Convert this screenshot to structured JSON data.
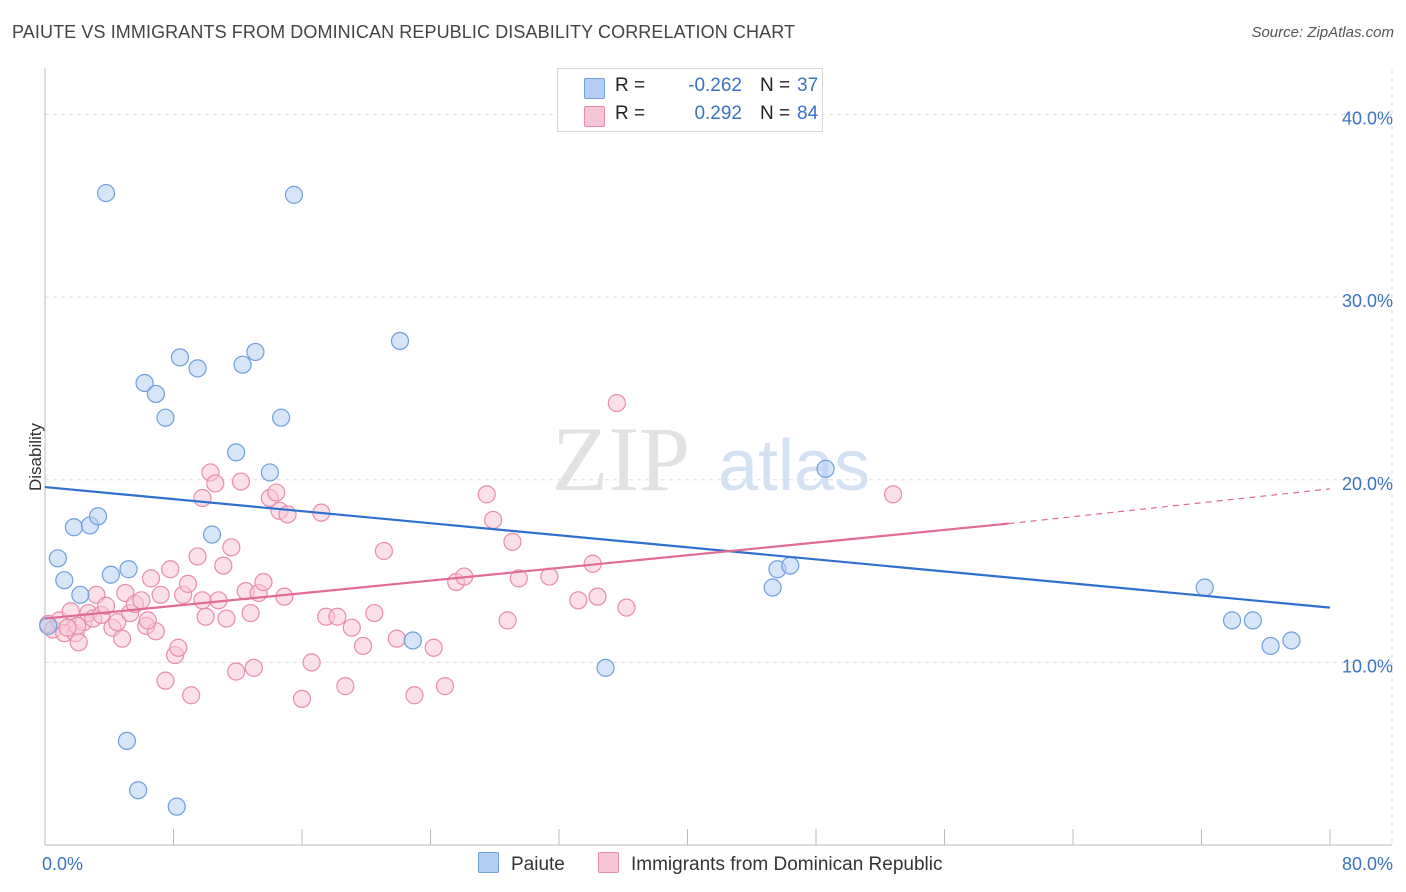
{
  "header": {
    "title": "PAIUTE VS IMMIGRANTS FROM DOMINICAN REPUBLIC DISABILITY CORRELATION CHART",
    "source": "Source: ZipAtlas.com"
  },
  "watermark": {
    "part1": "ZIP",
    "part2": "atlas"
  },
  "legend": {
    "rows": [
      {
        "r_key": "R =",
        "r_value": "-0.262",
        "n_key": "N =",
        "n_value": "37"
      },
      {
        "r_key": "R =",
        "r_value": "0.292",
        "n_key": "N =",
        "n_value": "84"
      }
    ]
  },
  "bottom_legend": {
    "series1": "Paiute",
    "series2": "Immigrants from Dominican Republic"
  },
  "colors": {
    "blue_fill": "#b5cff2",
    "blue_stroke": "#6f9fdc",
    "blue_line": "#2f6fcf",
    "pink_fill": "#f7c6d5",
    "pink_stroke": "#e98cab",
    "pink_line": "#e06b96",
    "tick_text": "#3b72c4",
    "grid": "#dddddd"
  },
  "chart_data": {
    "type": "scatter",
    "title": "PAIUTE VS IMMIGRANTS FROM DOMINICAN REPUBLIC DISABILITY CORRELATION CHART",
    "xlabel": "",
    "ylabel": "Disability",
    "xlim": [
      0,
      80
    ],
    "ylim": [
      0,
      42
    ],
    "x_tick_labels": [
      "0.0%",
      "80.0%"
    ],
    "y_ticks": [
      10,
      20,
      30,
      40
    ],
    "y_tick_labels": [
      "10.0%",
      "20.0%",
      "30.0%",
      "40.0%"
    ],
    "grid": true,
    "legend_position": "top-center",
    "series": [
      {
        "name": "Paiute",
        "r": -0.262,
        "n": 37,
        "trend": {
          "x": [
            0,
            80
          ],
          "y": [
            19.6,
            13.0
          ]
        },
        "points": [
          [
            0.2,
            12.0
          ],
          [
            0.8,
            15.7
          ],
          [
            1.2,
            14.5
          ],
          [
            1.8,
            17.4
          ],
          [
            2.2,
            13.7
          ],
          [
            2.8,
            17.5
          ],
          [
            3.3,
            18.0
          ],
          [
            3.8,
            35.7
          ],
          [
            4.1,
            14.8
          ],
          [
            5.1,
            5.7
          ],
          [
            5.2,
            15.1
          ],
          [
            5.8,
            3.0
          ],
          [
            6.2,
            25.3
          ],
          [
            6.9,
            24.7
          ],
          [
            7.5,
            23.4
          ],
          [
            8.2,
            2.1
          ],
          [
            8.4,
            26.7
          ],
          [
            9.5,
            26.1
          ],
          [
            10.4,
            17.0
          ],
          [
            11.9,
            21.5
          ],
          [
            12.3,
            26.3
          ],
          [
            13.1,
            27.0
          ],
          [
            14.0,
            20.4
          ],
          [
            14.7,
            23.4
          ],
          [
            15.5,
            35.6
          ],
          [
            22.1,
            27.6
          ],
          [
            22.9,
            11.2
          ],
          [
            34.9,
            9.7
          ],
          [
            45.3,
            14.1
          ],
          [
            45.6,
            15.1
          ],
          [
            46.4,
            15.3
          ],
          [
            48.6,
            20.6
          ],
          [
            72.2,
            14.1
          ],
          [
            73.9,
            12.3
          ],
          [
            75.2,
            12.3
          ],
          [
            76.3,
            10.9
          ],
          [
            77.6,
            11.2
          ]
        ]
      },
      {
        "name": "Immigrants from Dominican Republic",
        "r": 0.292,
        "n": 84,
        "trend": {
          "x": [
            0,
            60
          ],
          "y": [
            12.4,
            17.6
          ]
        },
        "trend_extension": {
          "x": [
            60,
            80
          ],
          "y": [
            17.6,
            19.5
          ]
        },
        "points": [
          [
            0.2,
            12.1
          ],
          [
            0.5,
            11.8
          ],
          [
            0.9,
            12.3
          ],
          [
            1.2,
            11.6
          ],
          [
            1.6,
            12.8
          ],
          [
            1.9,
            11.6
          ],
          [
            2.1,
            11.1
          ],
          [
            2.4,
            12.2
          ],
          [
            2.7,
            12.7
          ],
          [
            3.0,
            12.4
          ],
          [
            3.2,
            13.7
          ],
          [
            3.5,
            12.6
          ],
          [
            3.8,
            13.1
          ],
          [
            4.2,
            11.9
          ],
          [
            4.5,
            12.2
          ],
          [
            4.8,
            11.3
          ],
          [
            5.0,
            13.8
          ],
          [
            5.3,
            12.7
          ],
          [
            5.6,
            13.2
          ],
          [
            6.0,
            13.4
          ],
          [
            6.3,
            12.0
          ],
          [
            6.6,
            14.6
          ],
          [
            6.9,
            11.7
          ],
          [
            7.2,
            13.7
          ],
          [
            7.5,
            9.0
          ],
          [
            7.8,
            15.1
          ],
          [
            8.1,
            10.4
          ],
          [
            8.3,
            10.8
          ],
          [
            8.6,
            13.7
          ],
          [
            8.9,
            14.3
          ],
          [
            9.1,
            8.2
          ],
          [
            9.5,
            15.8
          ],
          [
            9.8,
            19.0
          ],
          [
            10.0,
            12.5
          ],
          [
            10.3,
            20.4
          ],
          [
            10.6,
            19.8
          ],
          [
            10.8,
            13.4
          ],
          [
            11.1,
            15.3
          ],
          [
            11.3,
            12.4
          ],
          [
            11.6,
            16.3
          ],
          [
            11.9,
            9.5
          ],
          [
            12.2,
            19.9
          ],
          [
            12.5,
            13.9
          ],
          [
            12.8,
            12.7
          ],
          [
            13.0,
            9.7
          ],
          [
            13.3,
            13.8
          ],
          [
            13.6,
            14.4
          ],
          [
            14.0,
            19.0
          ],
          [
            14.4,
            19.3
          ],
          [
            14.6,
            18.3
          ],
          [
            14.9,
            13.6
          ],
          [
            15.1,
            18.1
          ],
          [
            16.0,
            8.0
          ],
          [
            16.6,
            10.0
          ],
          [
            17.2,
            18.2
          ],
          [
            17.5,
            12.5
          ],
          [
            18.2,
            12.5
          ],
          [
            18.7,
            8.7
          ],
          [
            19.1,
            11.9
          ],
          [
            19.8,
            10.9
          ],
          [
            20.5,
            12.7
          ],
          [
            21.1,
            16.1
          ],
          [
            21.9,
            11.3
          ],
          [
            23.0,
            8.2
          ],
          [
            24.2,
            10.8
          ],
          [
            24.9,
            8.7
          ],
          [
            25.6,
            14.4
          ],
          [
            26.1,
            14.7
          ],
          [
            27.5,
            19.2
          ],
          [
            27.9,
            17.8
          ],
          [
            28.8,
            12.3
          ],
          [
            29.1,
            16.6
          ],
          [
            29.5,
            14.6
          ],
          [
            31.4,
            14.7
          ],
          [
            33.2,
            13.4
          ],
          [
            34.1,
            15.4
          ],
          [
            34.4,
            13.6
          ],
          [
            35.6,
            24.2
          ],
          [
            36.2,
            13.0
          ],
          [
            52.8,
            19.2
          ],
          [
            2.0,
            12.0
          ],
          [
            6.4,
            12.3
          ],
          [
            9.8,
            13.4
          ],
          [
            1.4,
            11.9
          ]
        ]
      }
    ]
  }
}
